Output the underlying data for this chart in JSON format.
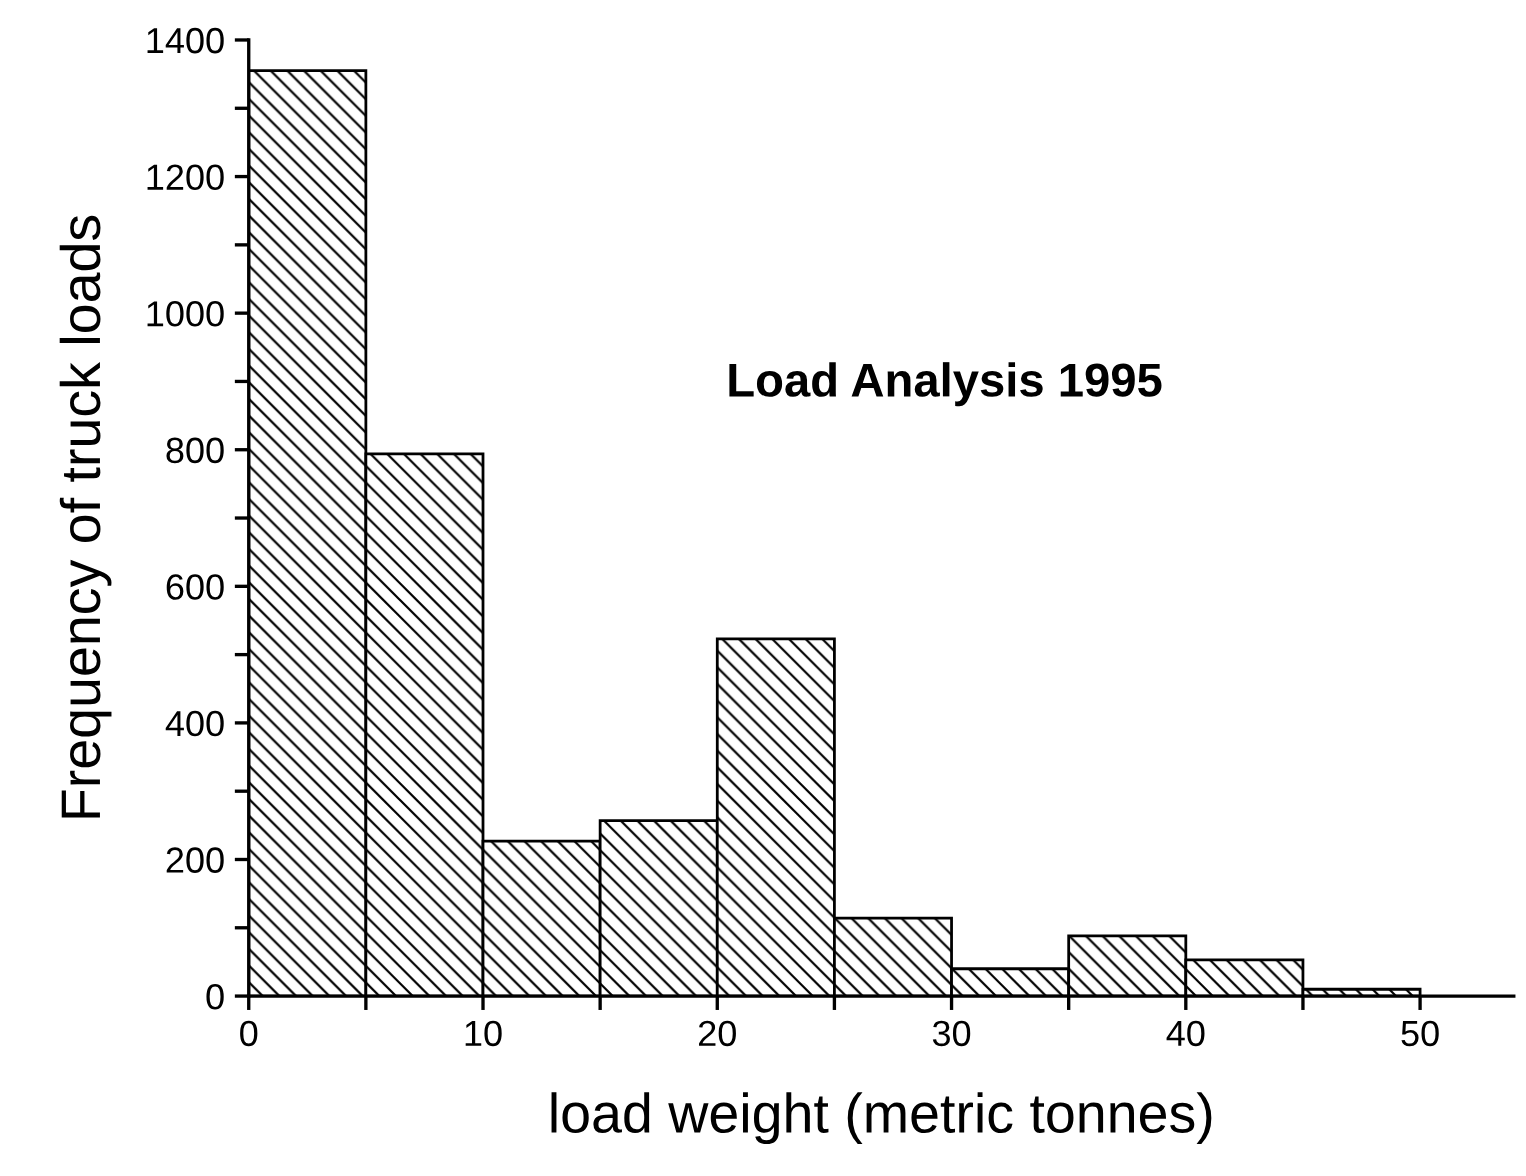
{
  "chart_data": {
    "type": "histogram",
    "title": "Load Analysis 1995",
    "xlabel": "load weight (metric tonnes)",
    "ylabel": "Frequency of truck loads",
    "bins": [
      0,
      5,
      10,
      15,
      20,
      25,
      30,
      35,
      40,
      45,
      50
    ],
    "values": [
      1355,
      794,
      227,
      257,
      523,
      114,
      40,
      88,
      53,
      10
    ],
    "color": "#000000",
    "xlim": [
      0,
      54
    ],
    "xticks": [
      0,
      {
        "value": 5,
        "label": null
      },
      10,
      {
        "value": 15,
        "label": null
      },
      20,
      {
        "value": 25,
        "label": null
      },
      30,
      {
        "value": 35,
        "label": null
      },
      40,
      {
        "value": 45,
        "label": null
      },
      50
    ],
    "ylim": [
      0,
      1400
    ],
    "yticks": [
      0,
      {
        "value": 100,
        "label": null
      },
      200,
      {
        "value": 300,
        "label": null
      },
      400,
      {
        "value": 500,
        "label": null
      },
      600,
      {
        "value": 700,
        "label": null
      },
      800,
      {
        "value": 900,
        "label": null
      },
      1000,
      {
        "value": 1100,
        "label": null
      },
      1200,
      {
        "value": 1300,
        "label": null
      },
      1400
    ],
    "grid": false
  }
}
